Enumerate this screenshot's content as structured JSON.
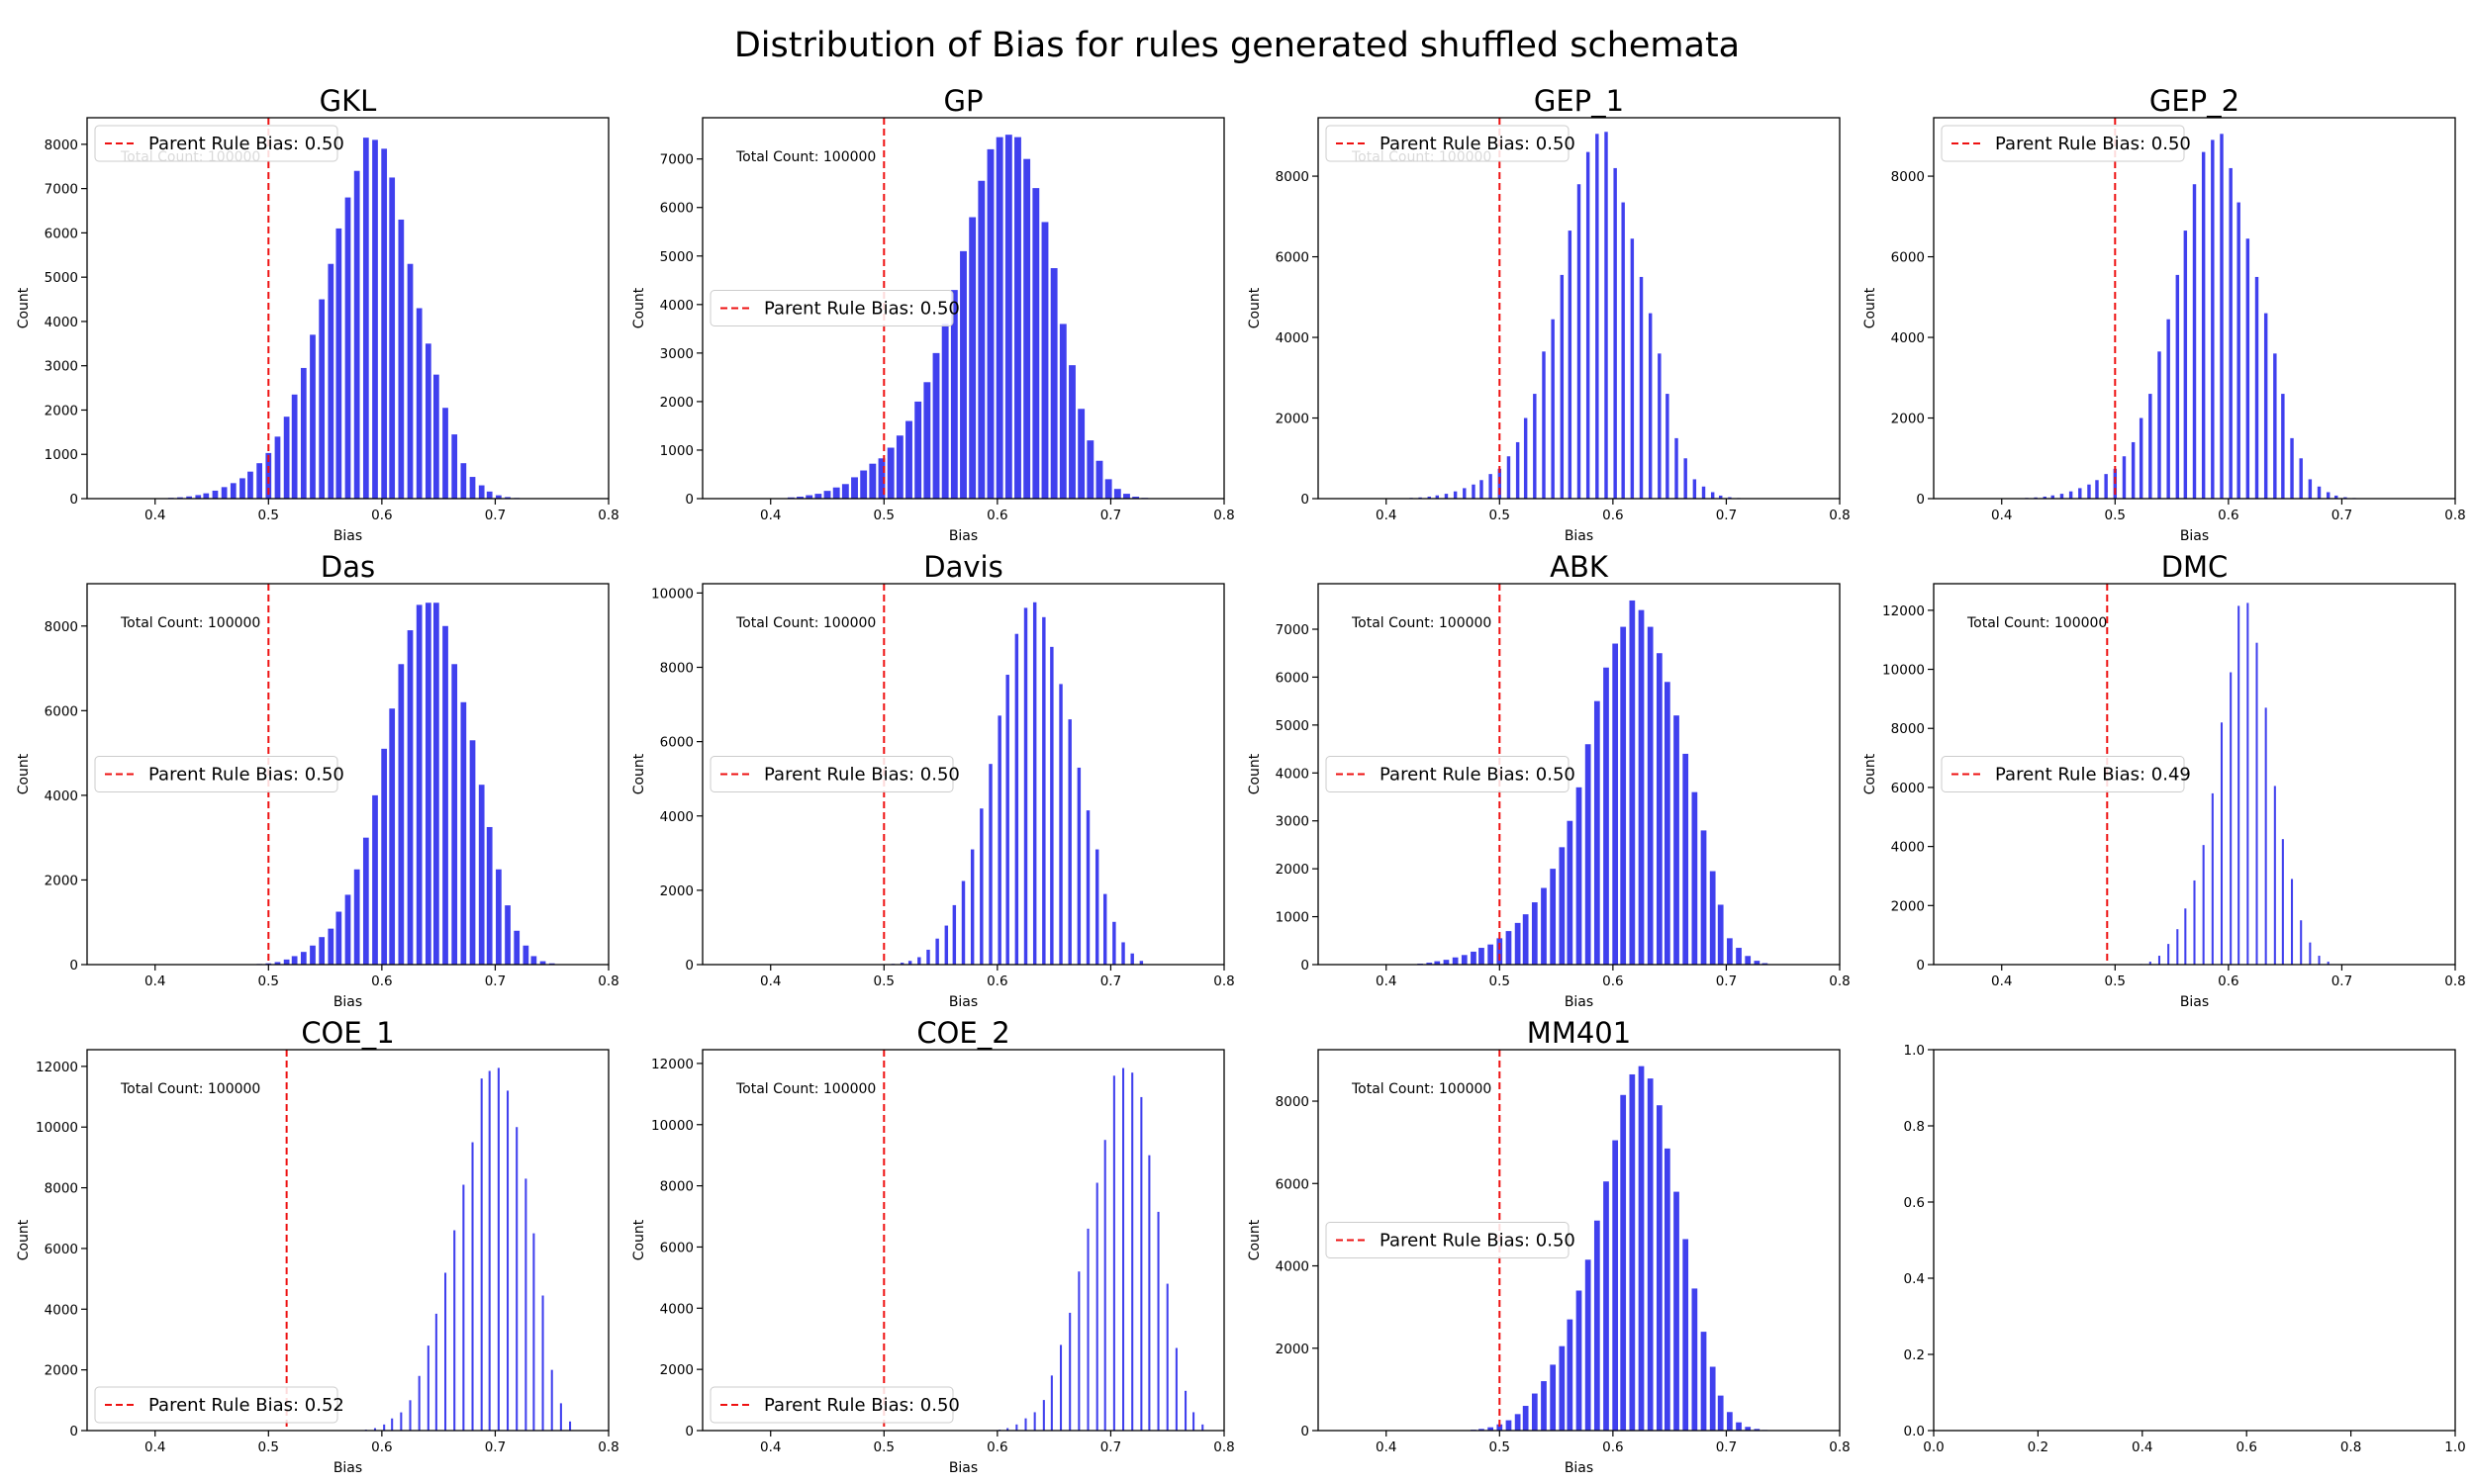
{
  "figure": {
    "title": "Distribution of Bias for rules generated shuffled schemata"
  },
  "colors": {
    "bars": "#4040ee",
    "parent_line": "#ee1111",
    "axes": "#000000",
    "legend_border": "#cccccc"
  },
  "chart_data": [
    {
      "type": "bar",
      "title": "GKL",
      "xlabel": "Bias",
      "ylabel": "Count",
      "xlim": [
        0.34,
        0.8
      ],
      "xticks": [
        0.4,
        0.5,
        0.6,
        0.7,
        0.8
      ],
      "ylim": [
        0,
        8600
      ],
      "yticks": [
        0,
        1000,
        2000,
        3000,
        4000,
        5000,
        6000,
        7000,
        8000
      ],
      "parent_bias": 0.5,
      "legend_label": "Parent Rule Bias: 0.50",
      "legend_loc": "upper-left",
      "annotation": "Total Count: 100000",
      "bar_width": 0.005,
      "x": [
        0.391,
        0.398,
        0.406,
        0.414,
        0.422,
        0.43,
        0.438,
        0.445,
        0.453,
        0.461,
        0.469,
        0.477,
        0.484,
        0.492,
        0.5,
        0.508,
        0.516,
        0.523,
        0.531,
        0.539,
        0.547,
        0.555,
        0.562,
        0.57,
        0.578,
        0.586,
        0.594,
        0.602,
        0.609,
        0.617,
        0.625,
        0.633,
        0.641,
        0.648,
        0.656,
        0.664,
        0.672,
        0.68,
        0.688,
        0.695,
        0.703,
        0.711,
        0.719,
        0.727,
        0.734
      ],
      "values": [
        2,
        5,
        10,
        18,
        30,
        50,
        80,
        120,
        180,
        260,
        350,
        460,
        610,
        800,
        1030,
        1400,
        1850,
        2350,
        2950,
        3700,
        4500,
        5300,
        6100,
        6800,
        7400,
        8150,
        8100,
        7900,
        7250,
        6300,
        5300,
        4300,
        3500,
        2800,
        2050,
        1450,
        800,
        490,
        300,
        160,
        75,
        35,
        15,
        6,
        2
      ]
    },
    {
      "type": "bar",
      "title": "GP",
      "xlabel": "Bias",
      "ylabel": "Count",
      "xlim": [
        0.34,
        0.8
      ],
      "xticks": [
        0.4,
        0.5,
        0.6,
        0.7,
        0.8
      ],
      "ylim": [
        0,
        7850
      ],
      "yticks": [
        0,
        1000,
        2000,
        3000,
        4000,
        5000,
        6000,
        7000
      ],
      "parent_bias": 0.5,
      "legend_label": "Parent Rule Bias: 0.50",
      "legend_loc": "center-left",
      "annotation": "Total Count: 100000",
      "bar_width": 0.006,
      "x": [
        0.41,
        0.418,
        0.426,
        0.434,
        0.442,
        0.45,
        0.458,
        0.466,
        0.474,
        0.482,
        0.49,
        0.498,
        0.506,
        0.514,
        0.522,
        0.53,
        0.538,
        0.546,
        0.554,
        0.562,
        0.57,
        0.578,
        0.586,
        0.594,
        0.602,
        0.61,
        0.618,
        0.626,
        0.634,
        0.642,
        0.65,
        0.658,
        0.666,
        0.674,
        0.682,
        0.69,
        0.698,
        0.706,
        0.714,
        0.722,
        0.73,
        0.738
      ],
      "values": [
        10,
        25,
        40,
        70,
        100,
        160,
        230,
        300,
        440,
        580,
        720,
        830,
        1050,
        1300,
        1600,
        2000,
        2400,
        3000,
        3600,
        4300,
        5100,
        5800,
        6550,
        7200,
        7450,
        7500,
        7450,
        7000,
        6400,
        5700,
        4750,
        3600,
        2750,
        1850,
        1200,
        780,
        400,
        200,
        100,
        40,
        15,
        5
      ]
    },
    {
      "type": "bar",
      "title": "GEP_1",
      "xlabel": "Bias",
      "ylabel": "Count",
      "xlim": [
        0.34,
        0.8
      ],
      "xticks": [
        0.4,
        0.5,
        0.6,
        0.7,
        0.8
      ],
      "ylim": [
        0,
        9450
      ],
      "yticks": [
        0,
        2000,
        4000,
        6000,
        8000
      ],
      "parent_bias": 0.5,
      "legend_label": "Parent Rule Bias: 0.50",
      "legend_loc": "upper-left",
      "annotation": "Total Count: 100000",
      "bar_width": 0.003,
      "x": [
        0.398,
        0.406,
        0.414,
        0.422,
        0.43,
        0.438,
        0.445,
        0.453,
        0.461,
        0.469,
        0.477,
        0.484,
        0.492,
        0.5,
        0.508,
        0.516,
        0.523,
        0.531,
        0.539,
        0.547,
        0.555,
        0.562,
        0.57,
        0.578,
        0.586,
        0.594,
        0.602,
        0.609,
        0.617,
        0.625,
        0.633,
        0.641,
        0.648,
        0.656,
        0.664,
        0.672,
        0.68,
        0.688,
        0.695,
        0.703,
        0.711,
        0.719
      ],
      "values": [
        3,
        6,
        10,
        18,
        30,
        50,
        80,
        120,
        180,
        260,
        350,
        460,
        610,
        740,
        1050,
        1400,
        2000,
        2600,
        3650,
        4450,
        5550,
        6650,
        7800,
        8600,
        9050,
        9100,
        8200,
        7350,
        6450,
        5500,
        4600,
        3600,
        2600,
        1500,
        1000,
        480,
        300,
        160,
        75,
        35,
        15,
        6
      ]
    },
    {
      "type": "bar",
      "title": "GEP_2",
      "xlabel": "Bias",
      "ylabel": "Count",
      "xlim": [
        0.34,
        0.8
      ],
      "xticks": [
        0.4,
        0.5,
        0.6,
        0.7,
        0.8
      ],
      "ylim": [
        0,
        9450
      ],
      "yticks": [
        0,
        2000,
        4000,
        6000,
        8000
      ],
      "parent_bias": 0.5,
      "legend_label": "Parent Rule Bias: 0.50",
      "legend_loc": "upper-left",
      "annotation": "",
      "bar_width": 0.003,
      "x": [
        0.398,
        0.406,
        0.414,
        0.422,
        0.43,
        0.438,
        0.445,
        0.453,
        0.461,
        0.469,
        0.477,
        0.484,
        0.492,
        0.5,
        0.508,
        0.516,
        0.523,
        0.531,
        0.539,
        0.547,
        0.555,
        0.562,
        0.57,
        0.578,
        0.586,
        0.594,
        0.602,
        0.609,
        0.617,
        0.625,
        0.633,
        0.641,
        0.648,
        0.656,
        0.664,
        0.672,
        0.68,
        0.688,
        0.695,
        0.703,
        0.711,
        0.719
      ],
      "values": [
        3,
        6,
        10,
        18,
        30,
        50,
        80,
        120,
        180,
        260,
        350,
        460,
        610,
        740,
        1050,
        1400,
        2000,
        2600,
        3650,
        4450,
        5550,
        6650,
        7800,
        8600,
        8900,
        9050,
        8200,
        7350,
        6450,
        5500,
        4600,
        3600,
        2600,
        1500,
        1000,
        480,
        300,
        160,
        75,
        35,
        15,
        6
      ]
    },
    {
      "type": "bar",
      "title": "Das",
      "xlabel": "Bias",
      "ylabel": "Count",
      "xlim": [
        0.34,
        0.8
      ],
      "xticks": [
        0.4,
        0.5,
        0.6,
        0.7,
        0.8
      ],
      "ylim": [
        0,
        9000
      ],
      "yticks": [
        0,
        2000,
        4000,
        6000,
        8000
      ],
      "parent_bias": 0.5,
      "legend_label": "Parent Rule Bias: 0.50",
      "legend_loc": "center-left",
      "annotation": "Total Count: 100000",
      "bar_width": 0.005,
      "x": [
        0.484,
        0.492,
        0.5,
        0.508,
        0.516,
        0.523,
        0.531,
        0.539,
        0.547,
        0.555,
        0.562,
        0.57,
        0.578,
        0.586,
        0.594,
        0.602,
        0.609,
        0.617,
        0.625,
        0.633,
        0.641,
        0.648,
        0.656,
        0.664,
        0.672,
        0.68,
        0.688,
        0.695,
        0.703,
        0.711,
        0.719,
        0.727,
        0.734,
        0.742,
        0.75
      ],
      "values": [
        5,
        15,
        30,
        60,
        120,
        200,
        300,
        450,
        650,
        850,
        1250,
        1650,
        2250,
        3000,
        4000,
        5100,
        6050,
        7100,
        7900,
        8500,
        8550,
        8550,
        8000,
        7100,
        6200,
        5300,
        4250,
        3250,
        2250,
        1400,
        800,
        450,
        200,
        80,
        30
      ]
    },
    {
      "type": "bar",
      "title": "Davis",
      "xlabel": "Bias",
      "ylabel": "Count",
      "xlim": [
        0.34,
        0.8
      ],
      "xticks": [
        0.4,
        0.5,
        0.6,
        0.7,
        0.8
      ],
      "ylim": [
        0,
        10250
      ],
      "yticks": [
        0,
        2000,
        4000,
        6000,
        8000,
        10000
      ],
      "parent_bias": 0.5,
      "legend_label": "Parent Rule Bias: 0.50",
      "legend_loc": "center-left",
      "annotation": "Total Count: 100000",
      "bar_width": 0.003,
      "x": [
        0.508,
        0.516,
        0.523,
        0.531,
        0.539,
        0.547,
        0.555,
        0.562,
        0.57,
        0.578,
        0.586,
        0.594,
        0.602,
        0.609,
        0.617,
        0.625,
        0.633,
        0.641,
        0.648,
        0.656,
        0.664,
        0.672,
        0.68,
        0.688,
        0.695,
        0.703,
        0.711,
        0.719,
        0.727
      ],
      "values": [
        20,
        50,
        100,
        200,
        400,
        700,
        1050,
        1600,
        2250,
        3100,
        4200,
        5400,
        6700,
        7800,
        8900,
        9600,
        9750,
        9350,
        8550,
        7550,
        6600,
        5300,
        4150,
        3100,
        1900,
        1150,
        600,
        300,
        100
      ]
    },
    {
      "type": "bar",
      "title": "ABK",
      "xlabel": "Bias",
      "ylabel": "Count",
      "xlim": [
        0.34,
        0.8
      ],
      "xticks": [
        0.4,
        0.5,
        0.6,
        0.7,
        0.8
      ],
      "ylim": [
        0,
        7950
      ],
      "yticks": [
        0,
        1000,
        2000,
        3000,
        4000,
        5000,
        6000,
        7000
      ],
      "parent_bias": 0.5,
      "legend_label": "Parent Rule Bias: 0.50",
      "legend_loc": "center-left",
      "annotation": "Total Count: 100000",
      "bar_width": 0.005,
      "x": [
        0.422,
        0.43,
        0.438,
        0.445,
        0.453,
        0.461,
        0.469,
        0.477,
        0.484,
        0.492,
        0.5,
        0.508,
        0.516,
        0.523,
        0.531,
        0.539,
        0.547,
        0.555,
        0.562,
        0.57,
        0.578,
        0.586,
        0.594,
        0.602,
        0.609,
        0.617,
        0.625,
        0.633,
        0.641,
        0.648,
        0.656,
        0.664,
        0.672,
        0.68,
        0.688,
        0.695,
        0.703,
        0.711,
        0.719,
        0.727,
        0.734
      ],
      "values": [
        10,
        20,
        40,
        70,
        100,
        150,
        200,
        270,
        350,
        420,
        550,
        700,
        870,
        1050,
        1300,
        1600,
        2000,
        2450,
        3000,
        3700,
        4600,
        5500,
        6200,
        6700,
        7050,
        7600,
        7400,
        7050,
        6500,
        5900,
        5200,
        4400,
        3600,
        2800,
        1950,
        1250,
        550,
        350,
        180,
        80,
        30
      ]
    },
    {
      "type": "bar",
      "title": "DMC",
      "xlabel": "Bias",
      "ylabel": "Count",
      "xlim": [
        0.34,
        0.8
      ],
      "xticks": [
        0.4,
        0.5,
        0.6,
        0.7,
        0.8
      ],
      "ylim": [
        0,
        12900
      ],
      "yticks": [
        0,
        2000,
        4000,
        6000,
        8000,
        10000,
        12000
      ],
      "parent_bias": 0.493,
      "legend_label": "Parent Rule Bias: 0.49",
      "legend_loc": "center-left",
      "annotation": "Total Count: 100000",
      "bar_width": 0.0018,
      "x": [
        0.523,
        0.531,
        0.539,
        0.547,
        0.555,
        0.562,
        0.57,
        0.578,
        0.586,
        0.594,
        0.602,
        0.609,
        0.617,
        0.625,
        0.633,
        0.641,
        0.648,
        0.656,
        0.664,
        0.672,
        0.68,
        0.688
      ],
      "values": [
        20,
        100,
        300,
        700,
        1200,
        1900,
        2850,
        4050,
        5800,
        8200,
        9900,
        12150,
        12250,
        10900,
        8700,
        6050,
        4250,
        2900,
        1500,
        750,
        300,
        100
      ]
    },
    {
      "type": "bar",
      "title": "COE_1",
      "xlabel": "Bias",
      "ylabel": "Count",
      "xlim": [
        0.34,
        0.8
      ],
      "xticks": [
        0.4,
        0.5,
        0.6,
        0.7,
        0.8
      ],
      "ylim": [
        0,
        12550
      ],
      "yticks": [
        0,
        2000,
        4000,
        6000,
        8000,
        10000,
        12000
      ],
      "parent_bias": 0.516,
      "legend_label": "Parent Rule Bias: 0.52",
      "legend_loc": "lower-left",
      "annotation": "Total Count: 100000",
      "bar_width": 0.0018,
      "x": [
        0.586,
        0.594,
        0.602,
        0.609,
        0.617,
        0.625,
        0.633,
        0.641,
        0.648,
        0.656,
        0.664,
        0.672,
        0.68,
        0.688,
        0.695,
        0.703,
        0.711,
        0.719,
        0.727,
        0.734,
        0.742,
        0.75,
        0.758,
        0.766
      ],
      "values": [
        30,
        80,
        200,
        400,
        600,
        1000,
        1800,
        2800,
        3850,
        5200,
        6600,
        8100,
        9500,
        11600,
        11850,
        11950,
        11200,
        10000,
        8300,
        6500,
        4450,
        2000,
        900,
        300
      ]
    },
    {
      "type": "bar",
      "title": "COE_2",
      "xlabel": "Bias",
      "ylabel": "Count",
      "xlim": [
        0.34,
        0.8
      ],
      "xticks": [
        0.4,
        0.5,
        0.6,
        0.7,
        0.8
      ],
      "ylim": [
        0,
        12450
      ],
      "yticks": [
        0,
        2000,
        4000,
        6000,
        8000,
        10000,
        12000
      ],
      "parent_bias": 0.5,
      "legend_label": "Parent Rule Bias: 0.50",
      "legend_loc": "lower-left",
      "annotation": "Total Count: 100000",
      "bar_width": 0.0018,
      "x": [
        0.602,
        0.609,
        0.617,
        0.625,
        0.633,
        0.641,
        0.648,
        0.656,
        0.664,
        0.672,
        0.68,
        0.688,
        0.695,
        0.703,
        0.711,
        0.719,
        0.727,
        0.734,
        0.742,
        0.75,
        0.758,
        0.766,
        0.773,
        0.781
      ],
      "values": [
        30,
        80,
        200,
        400,
        600,
        1000,
        1800,
        2800,
        3850,
        5200,
        6600,
        8100,
        9500,
        11600,
        11850,
        11700,
        10900,
        9000,
        7150,
        4800,
        2700,
        1300,
        600,
        200
      ]
    },
    {
      "type": "bar",
      "title": "MM401",
      "xlabel": "Bias",
      "ylabel": "Count",
      "xlim": [
        0.34,
        0.8
      ],
      "xticks": [
        0.4,
        0.5,
        0.6,
        0.7,
        0.8
      ],
      "ylim": [
        0,
        9250
      ],
      "yticks": [
        0,
        2000,
        4000,
        6000,
        8000
      ],
      "parent_bias": 0.5,
      "legend_label": "Parent Rule Bias: 0.50",
      "legend_loc": "center-left",
      "annotation": "Total Count: 100000",
      "bar_width": 0.005,
      "x": [
        0.477,
        0.484,
        0.492,
        0.5,
        0.508,
        0.516,
        0.523,
        0.531,
        0.539,
        0.547,
        0.555,
        0.562,
        0.57,
        0.578,
        0.586,
        0.594,
        0.602,
        0.609,
        0.617,
        0.625,
        0.633,
        0.641,
        0.648,
        0.656,
        0.664,
        0.672,
        0.68,
        0.688,
        0.695,
        0.703,
        0.711,
        0.719,
        0.727,
        0.734,
        0.742
      ],
      "values": [
        20,
        40,
        80,
        150,
        250,
        400,
        600,
        900,
        1200,
        1600,
        2050,
        2700,
        3400,
        4150,
        5100,
        6050,
        7050,
        8150,
        8650,
        8850,
        8550,
        7900,
        6850,
        5800,
        4650,
        3450,
        2400,
        1550,
        850,
        450,
        200,
        90,
        40,
        15,
        5
      ]
    },
    {
      "type": "empty",
      "title": "",
      "xlim": [
        0,
        1
      ],
      "ylim": [
        0,
        1
      ],
      "xticks": [
        0.0,
        0.2,
        0.4,
        0.6,
        0.8,
        1.0
      ],
      "yticks": [
        0.0,
        0.2,
        0.4,
        0.6,
        0.8,
        1.0
      ],
      "xtick_labels": [
        "0.0",
        "0.2",
        "0.4",
        "0.6",
        "0.8",
        "1.0"
      ],
      "ytick_labels": [
        "0.0",
        "0.2",
        "0.4",
        "0.6",
        "0.8",
        "1.0"
      ]
    }
  ]
}
